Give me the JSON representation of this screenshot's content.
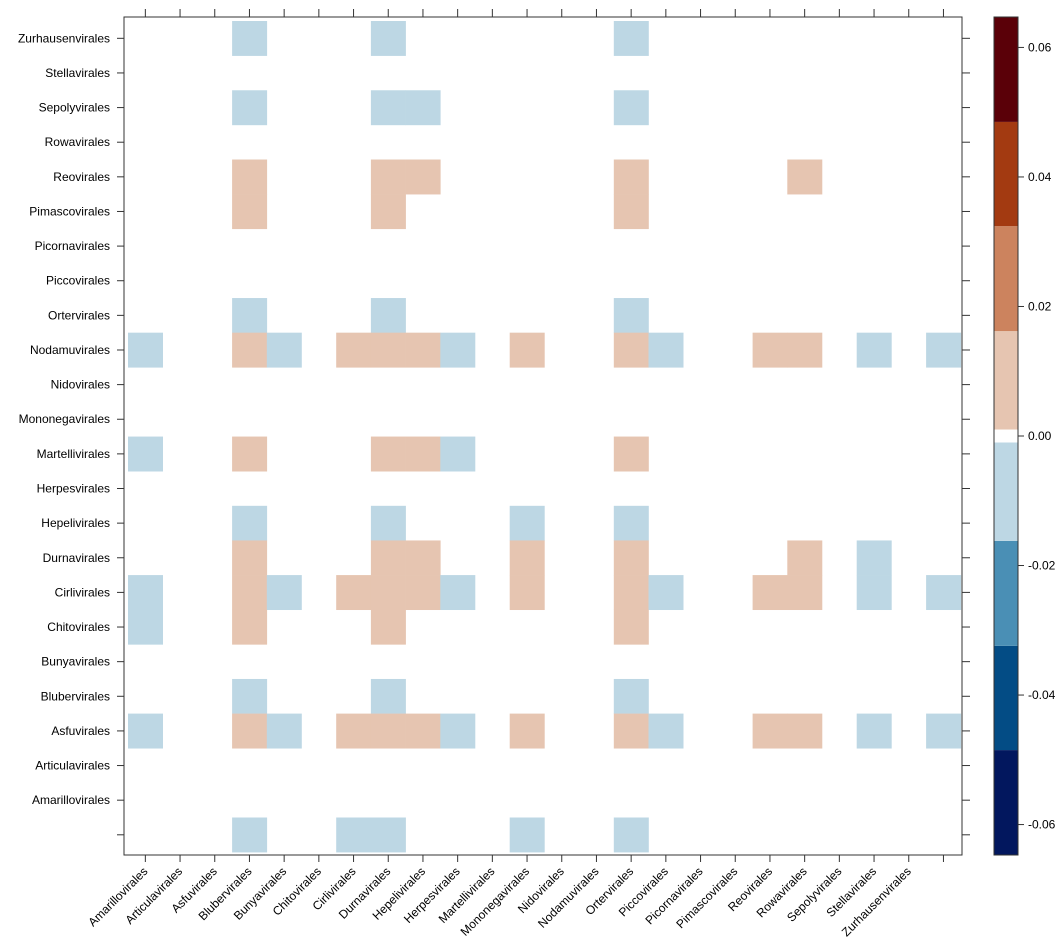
{
  "chart_data": {
    "type": "heatmap",
    "title": "",
    "xlabel": "",
    "ylabel": "",
    "x_labels": [
      "Amarillovirales",
      "Articulavirales",
      "Asfuvirales",
      "Blubervirales",
      "Bunyavirales",
      "Chitovirales",
      "Cirlivirales",
      "Durnavirales",
      "Hepelivirales",
      "Herpesvirales",
      "Martellivirales",
      "Mononegavirales",
      "Nidovirales",
      "Nodamuvirales",
      "Ortervirales",
      "Piccovirales",
      "Picornavirales",
      "Pimascovirales",
      "Reovirales",
      "Rowavirales",
      "Sepolyvirales",
      "Stellavirales",
      "Zurhausenvirales",
      ""
    ],
    "y_labels_top_to_bottom": [
      "Zurhausenvirales",
      "Stellavirales",
      "Sepolyvirales",
      "Rowavirales",
      "Reovirales",
      "Pimascovirales",
      "Picornavirales",
      "Piccovirales",
      "Ortervirales",
      "Nodamuvirales",
      "Nidovirales",
      "Mononegavirales",
      "Martellivirales",
      "Herpesvirales",
      "Hepelivirales",
      "Durnavirales",
      "Cirlivirales",
      "Chitovirales",
      "Bunyavirales",
      "Blubervirales",
      "Asfuvirales",
      "Articulavirales",
      "Amarillovirales",
      ""
    ],
    "values_top_to_bottom": [
      [
        0,
        0,
        0,
        -0.01,
        0,
        0,
        0,
        -0.01,
        0,
        0,
        0,
        0,
        0,
        0,
        -0.01,
        0,
        0,
        0,
        0,
        0,
        0,
        0,
        0,
        0
      ],
      [
        0,
        0,
        0,
        0,
        0,
        0,
        0,
        0,
        0,
        0,
        0,
        0,
        0,
        0,
        0,
        0,
        0,
        0,
        0,
        0,
        0,
        0,
        0,
        0
      ],
      [
        0,
        0,
        0,
        -0.01,
        0,
        0,
        0,
        -0.01,
        -0.01,
        0,
        0,
        0,
        0,
        0,
        -0.01,
        0,
        0,
        0,
        0,
        0,
        0,
        0,
        0,
        0
      ],
      [
        0,
        0,
        0,
        0,
        0,
        0,
        0,
        0,
        0,
        0,
        0,
        0,
        0,
        0,
        0,
        0,
        0,
        0,
        0,
        0,
        0,
        0,
        0,
        0
      ],
      [
        0,
        0,
        0,
        0.01,
        0,
        0,
        0,
        0.01,
        0.01,
        0,
        0,
        0,
        0,
        0,
        0.01,
        0,
        0,
        0,
        0,
        0.01,
        0,
        0,
        0,
        0
      ],
      [
        0,
        0,
        0,
        0.01,
        0,
        0,
        0,
        0.01,
        0,
        0,
        0,
        0,
        0,
        0,
        0.01,
        0,
        0,
        0,
        0,
        0,
        0,
        0,
        0,
        0
      ],
      [
        0,
        0,
        0,
        0,
        0,
        0,
        0,
        0,
        0,
        0,
        0,
        0,
        0,
        0,
        0,
        0,
        0,
        0,
        0,
        0,
        0,
        0,
        0,
        0
      ],
      [
        0,
        0,
        0,
        0,
        0,
        0,
        0,
        0,
        0,
        0,
        0,
        0,
        0,
        0,
        0,
        0,
        0,
        0,
        0,
        0,
        0,
        0,
        0,
        0
      ],
      [
        0,
        0,
        0,
        -0.01,
        0,
        0,
        0,
        -0.01,
        0,
        0,
        0,
        0,
        0,
        0,
        -0.01,
        0,
        0,
        0,
        0,
        0,
        0,
        0,
        0,
        0
      ],
      [
        -0.01,
        0,
        0,
        0.01,
        -0.01,
        0,
        0.01,
        0.01,
        0.01,
        -0.01,
        0,
        0.01,
        0,
        0,
        0.01,
        -0.01,
        0,
        0,
        0.01,
        0.01,
        0,
        -0.01,
        0,
        -0.01
      ],
      [
        0,
        0,
        0,
        0,
        0,
        0,
        0,
        0,
        0,
        0,
        0,
        0,
        0,
        0,
        0,
        0,
        0,
        0,
        0,
        0,
        0,
        0,
        0,
        0
      ],
      [
        0,
        0,
        0,
        0,
        0,
        0,
        0,
        0,
        0,
        0,
        0,
        0,
        0,
        0,
        0,
        0,
        0,
        0,
        0,
        0,
        0,
        0,
        0,
        0
      ],
      [
        -0.01,
        0,
        0,
        0.01,
        0,
        0,
        0,
        0.01,
        0.01,
        -0.01,
        0,
        0,
        0,
        0,
        0.01,
        0,
        0,
        0,
        0,
        0,
        0,
        0,
        0,
        0
      ],
      [
        0,
        0,
        0,
        0,
        0,
        0,
        0,
        0,
        0,
        0,
        0,
        0,
        0,
        0,
        0,
        0,
        0,
        0,
        0,
        0,
        0,
        0,
        0,
        0
      ],
      [
        0,
        0,
        0,
        -0.01,
        0,
        0,
        0,
        -0.01,
        0,
        0,
        0,
        -0.01,
        0,
        0,
        -0.01,
        0,
        0,
        0,
        0,
        0,
        0,
        0,
        0,
        0
      ],
      [
        0,
        0,
        0,
        0.01,
        0,
        0,
        0,
        0.01,
        0.01,
        0,
        0,
        0.01,
        0,
        0,
        0.01,
        0,
        0,
        0,
        0,
        0.01,
        0,
        -0.01,
        0,
        0
      ],
      [
        -0.01,
        0,
        0,
        0.01,
        -0.01,
        0,
        0.01,
        0.01,
        0.01,
        -0.01,
        0,
        0.01,
        0,
        0,
        0.01,
        -0.01,
        0,
        0,
        0.01,
        0.01,
        0,
        -0.01,
        0,
        -0.01
      ],
      [
        -0.01,
        0,
        0,
        0.01,
        0,
        0,
        0,
        0.01,
        0,
        0,
        0,
        0,
        0,
        0,
        0.01,
        0,
        0,
        0,
        0,
        0,
        0,
        0,
        0,
        0
      ],
      [
        0,
        0,
        0,
        0,
        0,
        0,
        0,
        0,
        0,
        0,
        0,
        0,
        0,
        0,
        0,
        0,
        0,
        0,
        0,
        0,
        0,
        0,
        0,
        0
      ],
      [
        0,
        0,
        0,
        -0.01,
        0,
        0,
        0,
        -0.01,
        0,
        0,
        0,
        0,
        0,
        0,
        -0.01,
        0,
        0,
        0,
        0,
        0,
        0,
        0,
        0,
        0
      ],
      [
        -0.01,
        0,
        0,
        0.01,
        -0.01,
        0,
        0.01,
        0.01,
        0.01,
        -0.01,
        0,
        0.01,
        0,
        0,
        0.01,
        -0.01,
        0,
        0,
        0.01,
        0.01,
        0,
        -0.01,
        0,
        -0.01
      ],
      [
        0,
        0,
        0,
        0,
        0,
        0,
        0,
        0,
        0,
        0,
        0,
        0,
        0,
        0,
        0,
        0,
        0,
        0,
        0,
        0,
        0,
        0,
        0,
        0
      ],
      [
        0,
        0,
        0,
        0,
        0,
        0,
        0,
        0,
        0,
        0,
        0,
        0,
        0,
        0,
        0,
        0,
        0,
        0,
        0,
        0,
        0,
        0,
        0,
        0
      ],
      [
        0,
        0,
        0,
        -0.01,
        0,
        0,
        -0.01,
        -0.01,
        0,
        0,
        0,
        -0.01,
        0,
        0,
        -0.01,
        0,
        0,
        0,
        0,
        0,
        0,
        0,
        0,
        0
      ]
    ],
    "colorbar": {
      "range": [
        -0.0647,
        0.0647
      ],
      "breaks": [
        -0.0647,
        -0.0485,
        -0.0324,
        -0.0162,
        -0.001,
        0.001,
        0.0162,
        0.0324,
        0.0485,
        0.0647
      ],
      "colors": [
        "#02175e",
        "#034c85",
        "#4a8fb5",
        "#bdd7e4",
        "#ffffff",
        "#e6c5b1",
        "#cc835e",
        "#a33a11",
        "#5a0008"
      ],
      "ticks": [
        -0.06,
        -0.04,
        -0.02,
        0.0,
        0.02,
        0.04,
        0.06
      ],
      "tick_labels": [
        "-0.06",
        "-0.04",
        "-0.02",
        "0.00",
        "0.02",
        "0.04",
        "0.06"
      ]
    },
    "grid": false,
    "legend": "right"
  }
}
